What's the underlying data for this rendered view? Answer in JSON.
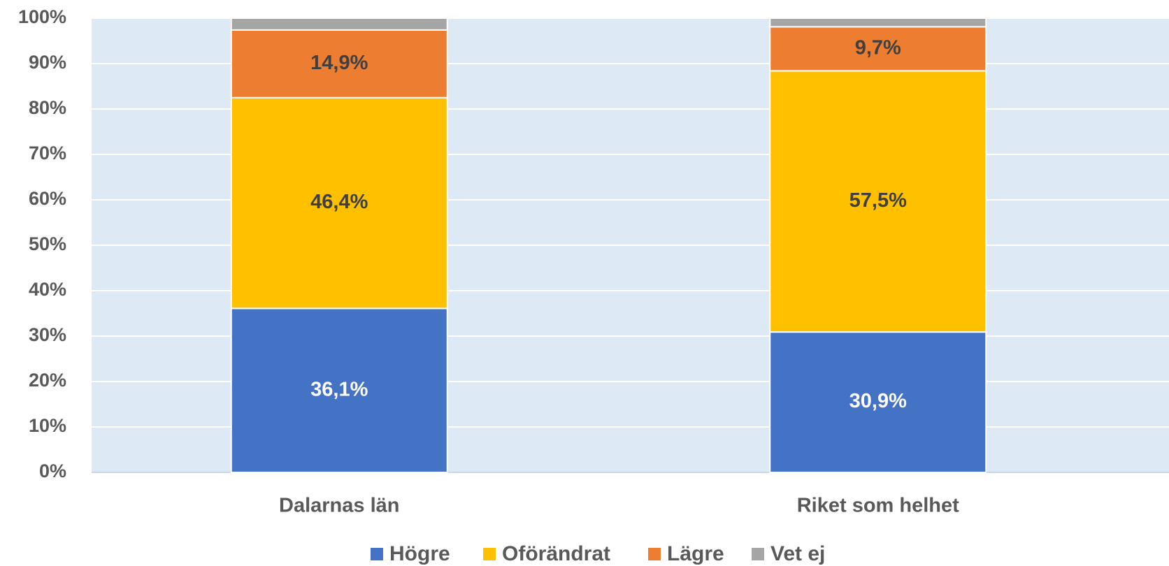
{
  "chart_data": {
    "type": "stacked_bar",
    "categories": [
      "Dalarnas län",
      "Riket som helhet"
    ],
    "series": [
      {
        "name": "Högre",
        "color": "#4472c4",
        "values": [
          36.1,
          30.9
        ],
        "value_labels": [
          "36,1%",
          "30,9%"
        ]
      },
      {
        "name": "Oförändrat",
        "color": "#ffc000",
        "values": [
          46.4,
          57.5
        ],
        "value_labels": [
          "46,4%",
          "57,5%"
        ]
      },
      {
        "name": "Lägre",
        "color": "#ed7d31",
        "values": [
          14.9,
          9.7
        ],
        "value_labels": [
          "14,9%",
          "9,7%"
        ]
      },
      {
        "name": "Vet ej",
        "color": "#a5a5a5",
        "values": [
          2.6,
          1.9
        ]
      }
    ],
    "ylim": [
      0,
      100
    ],
    "yticks": [
      {
        "value": 0,
        "label": "0%"
      },
      {
        "value": 10,
        "label": "10%"
      },
      {
        "value": 20,
        "label": "20%"
      },
      {
        "value": 30,
        "label": "30%"
      },
      {
        "value": 40,
        "label": "40%"
      },
      {
        "value": 50,
        "label": "50%"
      },
      {
        "value": 60,
        "label": "60%"
      },
      {
        "value": 70,
        "label": "70%"
      },
      {
        "value": 80,
        "label": "80%"
      },
      {
        "value": 90,
        "label": "90%"
      },
      {
        "value": 100,
        "label": "100%"
      }
    ],
    "grid": true,
    "legend": "bottom"
  }
}
